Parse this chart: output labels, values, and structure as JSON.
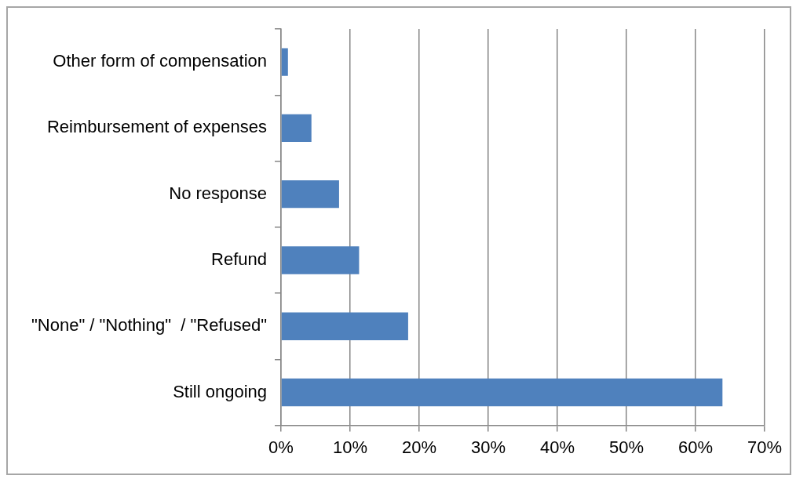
{
  "chart_data": {
    "type": "bar",
    "orientation": "horizontal",
    "categories": [
      "Other form of compensation",
      "Reimbursement of expenses",
      "No response",
      "Refund",
      "\"None\" / \"Nothing\"  / \"Refused\"",
      "Still ongoing"
    ],
    "values": [
      1.0,
      4.4,
      8.4,
      11.3,
      18.4,
      63.9
    ],
    "color": "#4f81bd",
    "xlim": [
      0,
      70
    ],
    "xticks": [
      {
        "value": 0,
        "label": "0%"
      },
      {
        "value": 10,
        "label": "10%"
      },
      {
        "value": 20,
        "label": "20%"
      },
      {
        "value": 30,
        "label": "30%"
      },
      {
        "value": 40,
        "label": "40%"
      },
      {
        "value": 50,
        "label": "50%"
      },
      {
        "value": 60,
        "label": "60%"
      },
      {
        "value": 70,
        "label": "70%"
      }
    ],
    "grid": "x",
    "legend": false
  }
}
